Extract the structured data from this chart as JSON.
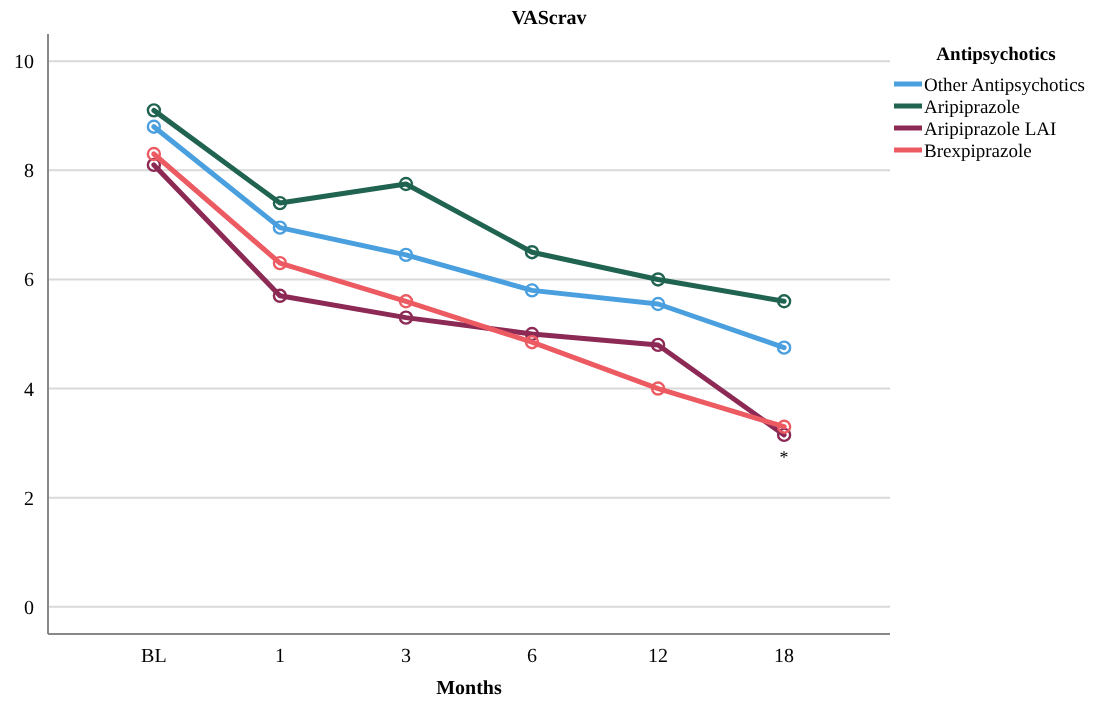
{
  "chart_data": {
    "type": "line",
    "title": "VAScrav",
    "xlabel": "Months",
    "legend_title": "Antipsychotics",
    "categories": [
      "BL",
      "1",
      "3",
      "6",
      "12",
      "18"
    ],
    "series": [
      {
        "name": "Other Antipsychotics",
        "color": "#4a9fdf",
        "values": [
          8.8,
          6.95,
          6.45,
          5.8,
          5.55,
          4.75
        ]
      },
      {
        "name": "Aripiprazole",
        "color": "#1f6350",
        "values": [
          9.1,
          7.4,
          7.75,
          6.5,
          6.0,
          5.6
        ]
      },
      {
        "name": "Aripiprazole LAI",
        "color": "#8c2a55",
        "values": [
          8.1,
          5.7,
          5.3,
          5.0,
          4.8,
          3.15
        ]
      },
      {
        "name": "Brexpiprazole",
        "color": "#ec5a62",
        "values": [
          8.3,
          6.3,
          5.6,
          4.85,
          4.0,
          3.3
        ]
      }
    ],
    "annotations": [
      "*"
    ],
    "ylim": [
      -0.5,
      10.5
    ],
    "yticks": [
      0,
      2,
      4,
      6,
      8,
      10
    ],
    "grid": "y",
    "legend": "top right",
    "marker": "circle",
    "line_style": "solid"
  }
}
